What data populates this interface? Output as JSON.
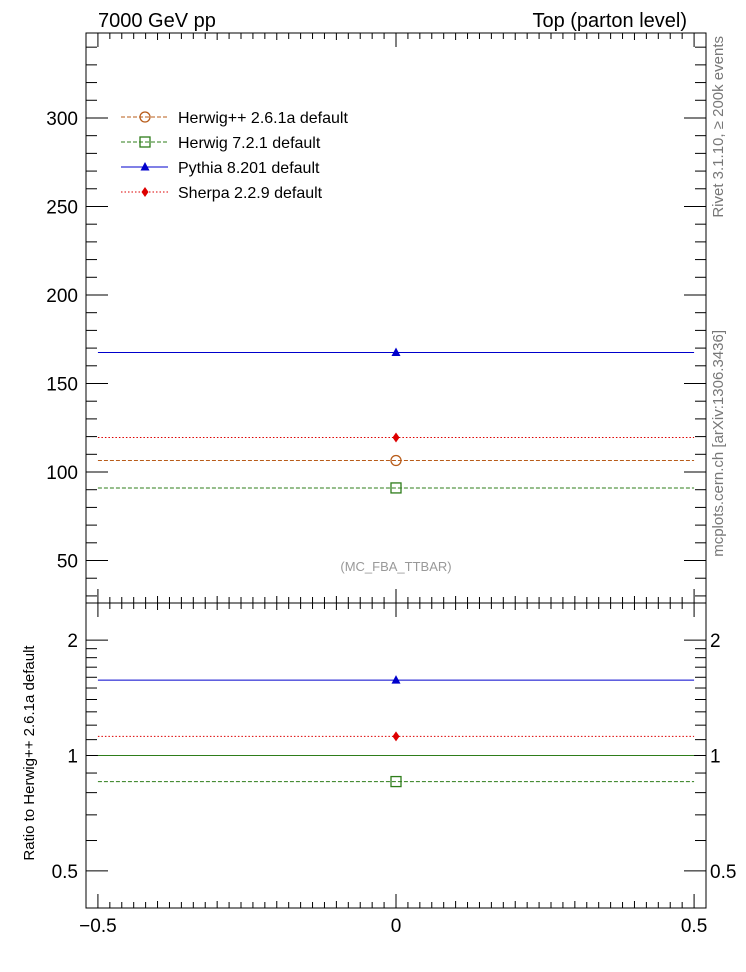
{
  "header": {
    "left": "7000 GeV pp",
    "right": "Top (parton level)"
  },
  "side_text": {
    "rivet": "Rivet 3.1.10, ≥ 200k events",
    "mcplots": "mcplots.cern.ch [arXiv:1306.3436]"
  },
  "watermark": "(MC_FBA_TTBAR)",
  "ratio_ylabel": "Ratio to Herwig++ 2.6.1a default",
  "chart_data": [
    {
      "type": "line",
      "panel": "main",
      "xlim": [
        -0.52,
        0.52
      ],
      "ylim": [
        26,
        348
      ],
      "yticks": [
        50,
        100,
        150,
        200,
        250,
        300
      ],
      "ytick_labels": [
        "50",
        "100",
        "150",
        "200",
        "250",
        "300"
      ],
      "legend": {
        "placement": "top-left"
      },
      "series": [
        {
          "name": "Herwig++ 2.6.1a default",
          "color": "#b85c1a",
          "style": "dashed",
          "marker": "circle-open",
          "x": [
            0
          ],
          "y": [
            106.5
          ],
          "xrange": [
            -0.5,
            0.5
          ]
        },
        {
          "name": "Herwig 7.2.1 default",
          "color": "#2e7d1a",
          "style": "dashed",
          "marker": "square-open",
          "x": [
            0
          ],
          "y": [
            91
          ],
          "xrange": [
            -0.5,
            0.5
          ]
        },
        {
          "name": "Pythia 8.201 default",
          "color": "#0000cc",
          "style": "solid",
          "marker": "triangle-filled",
          "x": [
            0
          ],
          "y": [
            167.5
          ],
          "xrange": [
            -0.5,
            0.5
          ]
        },
        {
          "name": "Sherpa 2.2.9 default",
          "color": "#dd0000",
          "style": "dotted",
          "marker": "diamond-filled",
          "x": [
            0
          ],
          "y": [
            119.5
          ],
          "xrange": [
            -0.5,
            0.5
          ]
        }
      ]
    },
    {
      "type": "line",
      "panel": "ratio",
      "ylabel": "Ratio to Herwig++ 2.6.1a default",
      "yscale": "log",
      "xlim": [
        -0.52,
        0.52
      ],
      "ylim": [
        0.4,
        2.5
      ],
      "xticks": [
        -0.5,
        0,
        0.5
      ],
      "xtick_labels": [
        "−0.5",
        "0",
        "0.5"
      ],
      "yticks": [
        0.5,
        1,
        2
      ],
      "ytick_labels": [
        "0.5",
        "1",
        "2"
      ],
      "series": [
        {
          "name": "Herwig++ 2.6.1a default",
          "color": "#2e7d1a",
          "style": "solid",
          "marker": "none",
          "x": [
            0
          ],
          "y": [
            1.0
          ],
          "xrange": [
            -0.5,
            0.5
          ]
        },
        {
          "name": "Herwig 7.2.1 default",
          "color": "#2e7d1a",
          "style": "dashed",
          "marker": "square-open",
          "x": [
            0
          ],
          "y": [
            0.855
          ],
          "xrange": [
            -0.5,
            0.5
          ]
        },
        {
          "name": "Pythia 8.201 default",
          "color": "#0000cc",
          "style": "solid",
          "marker": "triangle-filled",
          "x": [
            0
          ],
          "y": [
            1.573
          ],
          "xrange": [
            -0.5,
            0.5
          ]
        },
        {
          "name": "Sherpa 2.2.9 default",
          "color": "#dd0000",
          "style": "dotted",
          "marker": "diamond-filled",
          "x": [
            0
          ],
          "y": [
            1.122
          ],
          "xrange": [
            -0.5,
            0.5
          ]
        }
      ]
    }
  ]
}
